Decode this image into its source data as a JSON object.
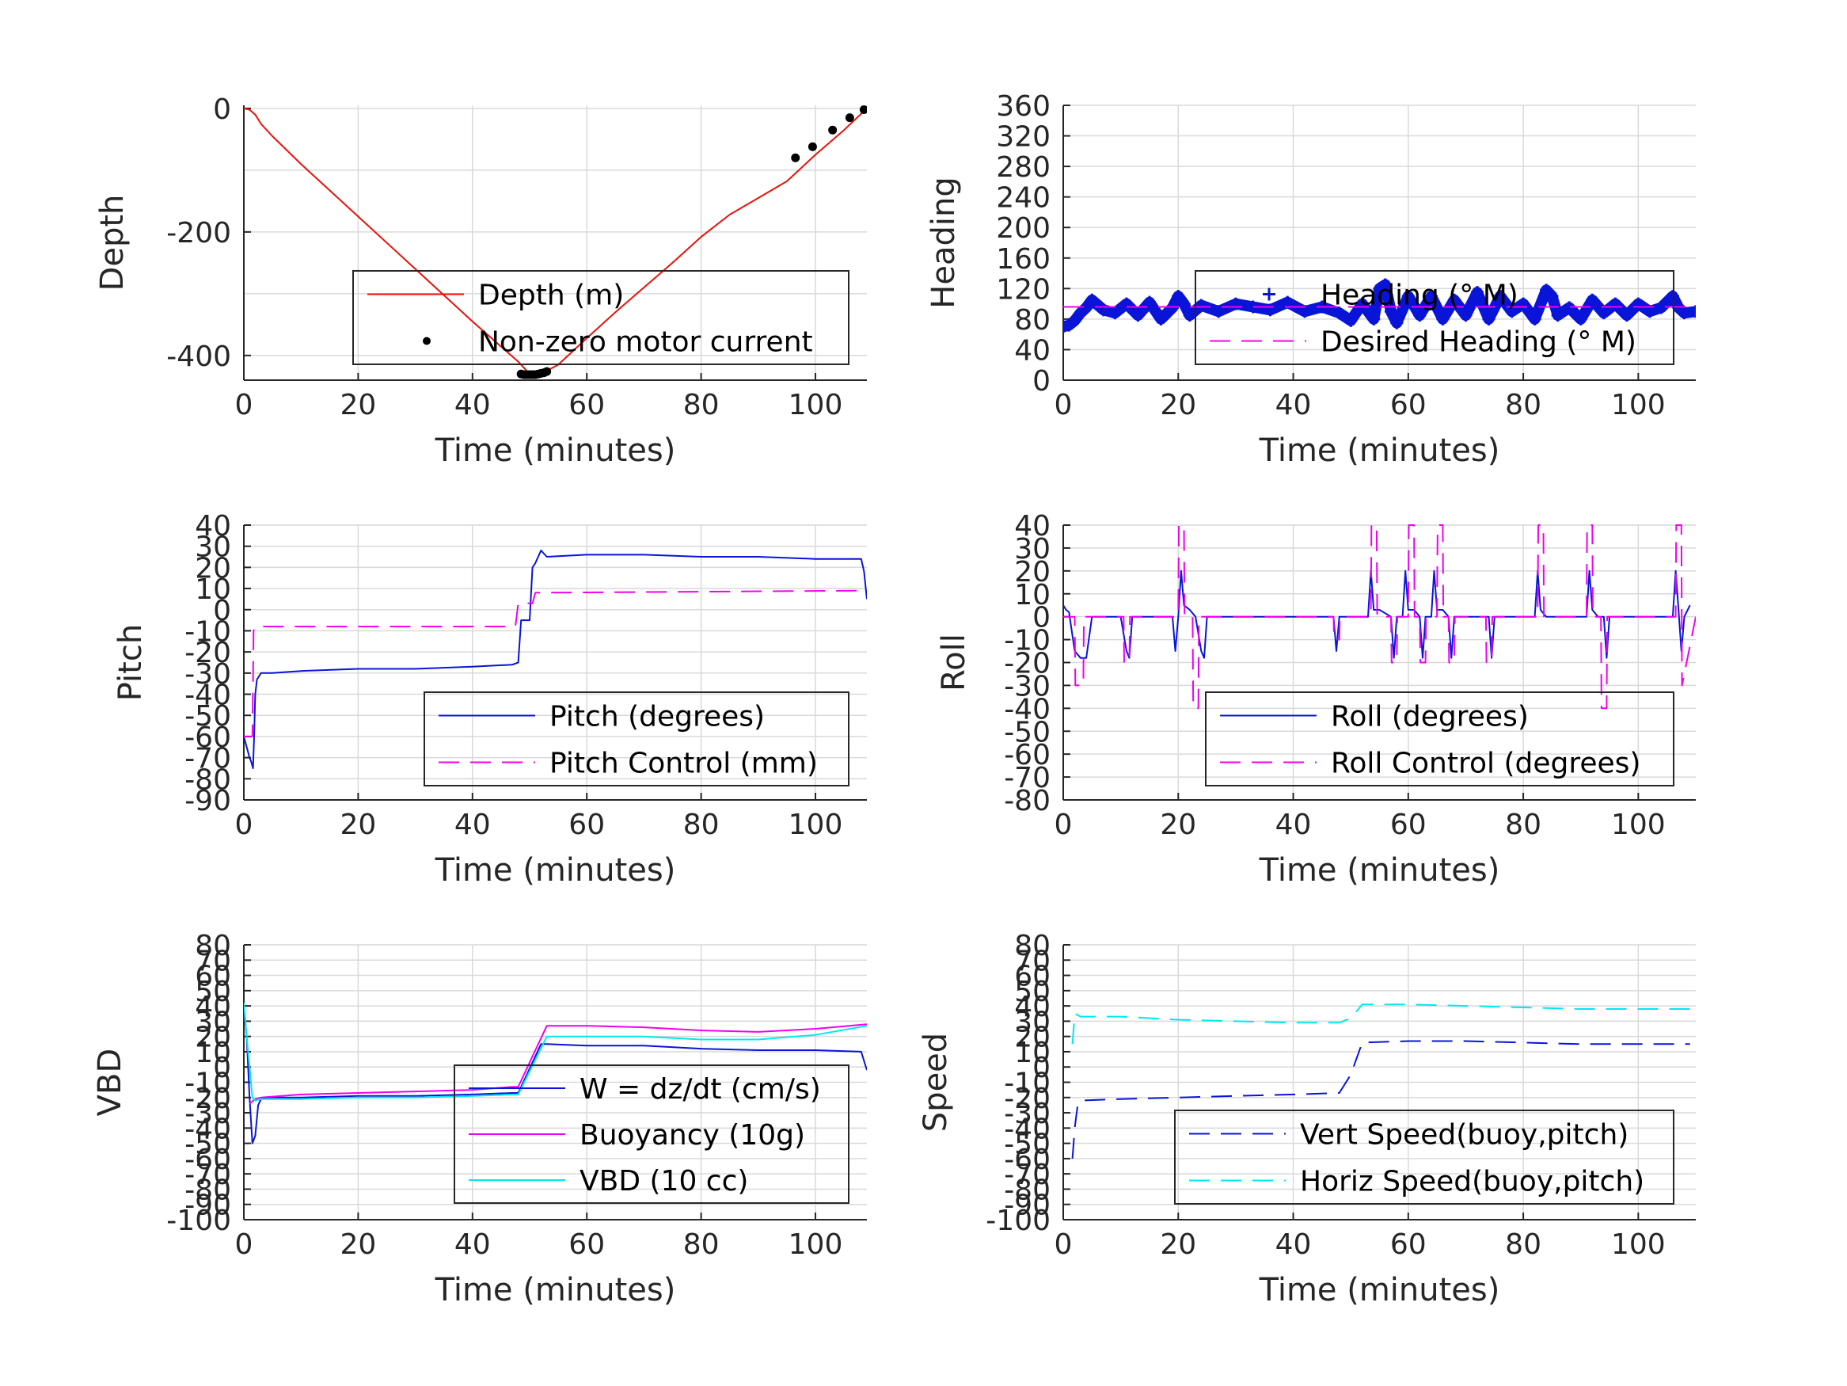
{
  "colors": {
    "red": "#e8120c",
    "blue": "#0a14d8",
    "magenta": "#f000f0",
    "cyan": "#00e8f0",
    "black": "#000000",
    "grid": "#d9d9d9",
    "axis": "#262626"
  },
  "chart_data": [
    {
      "id": "depth",
      "type": "line",
      "xlabel": "Time (minutes)",
      "ylabel": "Depth",
      "xlim": [
        0,
        109
      ],
      "ylim": [
        -440,
        5
      ],
      "xticks": [
        0,
        20,
        40,
        60,
        80,
        100
      ],
      "yticks": [
        0,
        -200,
        -400
      ],
      "ygrid": [
        0,
        -100,
        -200,
        -300,
        -400
      ],
      "legend_position": "bottom-right",
      "series": [
        {
          "name": "Depth (m)",
          "kind": "line",
          "color": "#e8120c",
          "dash": "",
          "x": [
            0,
            1,
            2,
            3,
            5,
            10,
            20,
            30,
            40,
            48,
            50,
            53,
            55,
            60,
            65,
            70,
            75,
            80,
            85,
            90,
            95,
            100,
            105,
            109
          ],
          "y": [
            0,
            -2,
            -10,
            -25,
            -45,
            -90,
            -175,
            -260,
            -345,
            -410,
            -430,
            -425,
            -415,
            -372,
            -330,
            -290,
            -250,
            -208,
            -172,
            -145,
            -118,
            -75,
            -35,
            0
          ]
        },
        {
          "name": "Non-zero motor current",
          "kind": "dots",
          "color": "#000000",
          "x": [
            48.5,
            49,
            49.5,
            50,
            50.5,
            51,
            51.5,
            52,
            52.5,
            53,
            96.5,
            99.5,
            103,
            106,
            108.5
          ],
          "y": [
            -430,
            -431,
            -431,
            -431,
            -431,
            -431,
            -430,
            -429,
            -428,
            -426,
            -80,
            -62,
            -35,
            -15,
            -2
          ]
        }
      ]
    },
    {
      "id": "heading",
      "type": "line",
      "xlabel": "Time (minutes)",
      "ylabel": "Heading",
      "xlim": [
        0,
        110
      ],
      "ylim": [
        0,
        360
      ],
      "xticks": [
        0,
        20,
        40,
        60,
        80,
        100
      ],
      "yticks": [
        0,
        40,
        80,
        120,
        160,
        200,
        240,
        280,
        320,
        360
      ],
      "ygrid": [
        0,
        40,
        80,
        120,
        160,
        200,
        240,
        280,
        320,
        360
      ],
      "legend_position": "right",
      "series": [
        {
          "name": "Heading (° M)",
          "kind": "marker-line",
          "color": "#0a14d8",
          "x": [
            0,
            1,
            2,
            3,
            4,
            5,
            7,
            9,
            11,
            13,
            15,
            17,
            19,
            20,
            21,
            22,
            24,
            27,
            30,
            33,
            36,
            39,
            42,
            45,
            48,
            50,
            52,
            54,
            55,
            56,
            57,
            58,
            60,
            62,
            64,
            66,
            68,
            70,
            72,
            74,
            76,
            78,
            80,
            82,
            84,
            85,
            86,
            88,
            90,
            92,
            94,
            96,
            98,
            100,
            102,
            104,
            106,
            107,
            108,
            110
          ],
          "y": [
            70,
            72,
            78,
            88,
            95,
            105,
            92,
            88,
            100,
            85,
            102,
            80,
            95,
            110,
            100,
            85,
            98,
            90,
            100,
            96,
            92,
            102,
            90,
            96,
            88,
            78,
            100,
            80,
            120,
            125,
            90,
            75,
            110,
            85,
            110,
            80,
            105,
            85,
            115,
            80,
            110,
            90,
            100,
            80,
            118,
            110,
            85,
            95,
            80,
            105,
            88,
            100,
            85,
            100,
            90,
            95,
            110,
            95,
            88,
            90
          ]
        },
        {
          "name": "Desired Heading (° M)",
          "kind": "line",
          "color": "#f000f0",
          "dash": "26,14",
          "x": [
            0,
            110
          ],
          "y": [
            96,
            96
          ]
        }
      ]
    },
    {
      "id": "pitch",
      "type": "line",
      "xlabel": "Time (minutes)",
      "ylabel": "Pitch",
      "xlim": [
        0,
        109
      ],
      "ylim": [
        -90,
        40
      ],
      "xticks": [
        0,
        20,
        40,
        60,
        80,
        100
      ],
      "yticks": [
        40,
        30,
        20,
        10,
        0,
        -10,
        -20,
        -30,
        -40,
        -50,
        -60,
        -70,
        -80,
        -90
      ],
      "ygrid": [
        40,
        30,
        20,
        10,
        0,
        -10,
        -20,
        -30,
        -40,
        -50,
        -60,
        -70,
        -80,
        -90
      ],
      "legend_position": "bottom-right",
      "series": [
        {
          "name": "Pitch (degrees)",
          "kind": "line",
          "color": "#0a14d8",
          "dash": "",
          "x": [
            0,
            0.5,
            1,
            1.3,
            1.6,
            1.8,
            2,
            2.3,
            3,
            5,
            10,
            20,
            30,
            40,
            47,
            48,
            48.5,
            50,
            50.5,
            51,
            52,
            53,
            60,
            70,
            80,
            90,
            100,
            108,
            108.5,
            109
          ],
          "y": [
            -60,
            -65,
            -70,
            -72,
            -75,
            -60,
            -40,
            -33,
            -30,
            -30,
            -29,
            -28,
            -28,
            -27,
            -26,
            -25,
            -5,
            -5,
            20,
            22,
            28,
            25,
            26,
            26,
            25,
            25,
            24,
            24,
            18,
            5
          ]
        },
        {
          "name": "Pitch Control (mm)",
          "kind": "line",
          "color": "#f000f0",
          "dash": "26,14",
          "x": [
            0,
            1.5,
            1.7,
            2,
            47.5,
            48,
            50.5,
            51,
            109
          ],
          "y": [
            -60,
            -60,
            -10,
            -8,
            -8,
            3,
            3,
            8,
            9
          ]
        }
      ]
    },
    {
      "id": "roll",
      "type": "line",
      "xlabel": "Time (minutes)",
      "ylabel": "Roll",
      "xlim": [
        0,
        110
      ],
      "ylim": [
        -80,
        40
      ],
      "xticks": [
        0,
        20,
        40,
        60,
        80,
        100
      ],
      "yticks": [
        40,
        30,
        20,
        10,
        0,
        -10,
        -20,
        -30,
        -40,
        -50,
        -60,
        -70,
        -80
      ],
      "ygrid": [
        40,
        30,
        20,
        10,
        0,
        -10,
        -20,
        -30,
        -40,
        -50,
        -60,
        -70,
        -80
      ],
      "legend_position": "bottom-right",
      "series": [
        {
          "name": "Roll (degrees)",
          "kind": "line",
          "color": "#0a14d8",
          "dash": "",
          "x": [
            0,
            0.5,
            1,
            2,
            3,
            4,
            5,
            10,
            11,
            11.5,
            12,
            19,
            19.5,
            20,
            20.5,
            21,
            22,
            23,
            24,
            24.5,
            25,
            47,
            47.5,
            48,
            53,
            53.5,
            54,
            55,
            57,
            57.5,
            58,
            59,
            59.5,
            60,
            61,
            62,
            62.5,
            63,
            64,
            64.5,
            65,
            66,
            67,
            67.5,
            68,
            74,
            74.5,
            75,
            76,
            82,
            82.5,
            83,
            84,
            91,
            91.5,
            92,
            93,
            94,
            94.5,
            95,
            106,
            106.5,
            107,
            107.5,
            108,
            109
          ],
          "y": [
            5,
            3,
            2,
            -15,
            -18,
            -18,
            0,
            0,
            -15,
            -18,
            0,
            0,
            -15,
            0,
            20,
            5,
            3,
            0,
            -15,
            -18,
            0,
            0,
            -15,
            0,
            0,
            20,
            3,
            3,
            0,
            -18,
            0,
            0,
            20,
            3,
            3,
            0,
            -18,
            0,
            0,
            20,
            3,
            3,
            0,
            -18,
            0,
            0,
            -18,
            0,
            0,
            0,
            20,
            3,
            0,
            0,
            20,
            3,
            0,
            0,
            -18,
            0,
            0,
            20,
            3,
            -15,
            0,
            5
          ]
        },
        {
          "name": "Roll Control (degrees)",
          "kind": "line",
          "color": "#f000f0",
          "dash": "26,14",
          "x": [
            0,
            2,
            2.1,
            3.5,
            3.6,
            10.5,
            10.6,
            11.5,
            11.6,
            20,
            20.1,
            21,
            21.1,
            22.5,
            22.6,
            23.5,
            23.6,
            47,
            47.1,
            48,
            48.1,
            53.5,
            53.6,
            54.5,
            54.6,
            57,
            57.1,
            58,
            58.1,
            60,
            60.1,
            61,
            61.1,
            62,
            62.1,
            63,
            63.1,
            65,
            65.1,
            66,
            66.1,
            67,
            67.1,
            68,
            68.1,
            73.5,
            73.6,
            74.5,
            74.6,
            82.5,
            82.6,
            83.5,
            83.6,
            91,
            91.1,
            92,
            92.1,
            93.5,
            93.6,
            94.5,
            94.6,
            106.5,
            106.6,
            107.5,
            107.6,
            110
          ],
          "y": [
            0,
            0,
            -30,
            -30,
            0,
            0,
            -20,
            -20,
            0,
            0,
            40,
            40,
            0,
            0,
            -40,
            -40,
            0,
            0,
            -10,
            -10,
            0,
            0,
            40,
            40,
            0,
            0,
            -20,
            -20,
            0,
            0,
            40,
            40,
            0,
            0,
            -20,
            -20,
            0,
            0,
            40,
            40,
            0,
            0,
            -20,
            -20,
            0,
            0,
            -20,
            -20,
            0,
            0,
            40,
            40,
            0,
            0,
            40,
            40,
            0,
            0,
            -40,
            -40,
            0,
            0,
            40,
            40,
            -30,
            0
          ]
        }
      ]
    },
    {
      "id": "vbd",
      "type": "line",
      "xlabel": "Time (minutes)",
      "ylabel": "VBD",
      "xlim": [
        0,
        109
      ],
      "ylim": [
        -100,
        80
      ],
      "xticks": [
        0,
        20,
        40,
        60,
        80,
        100
      ],
      "yticks": [
        80,
        70,
        60,
        50,
        40,
        30,
        20,
        10,
        0,
        -10,
        -20,
        -30,
        -40,
        -50,
        -60,
        -70,
        -80,
        -90,
        -100
      ],
      "ygrid": [
        80,
        70,
        60,
        50,
        40,
        30,
        20,
        10,
        0,
        -10,
        -20,
        -30,
        -40,
        -50,
        -60,
        -70,
        -80,
        -90,
        -100
      ],
      "legend_position": "bottom-right",
      "series": [
        {
          "name": "W = dz/dt (cm/s)",
          "kind": "line",
          "color": "#0a14d8",
          "dash": "",
          "x": [
            0,
            0.5,
            1,
            1.5,
            2,
            2.5,
            3,
            4,
            10,
            20,
            30,
            40,
            47,
            48,
            52,
            53,
            60,
            70,
            80,
            90,
            100,
            108,
            109
          ],
          "y": [
            40,
            20,
            -20,
            -50,
            -45,
            -25,
            -21,
            -20,
            -20,
            -19,
            -19,
            -18,
            -17,
            -17,
            15,
            15,
            14,
            14,
            12,
            11,
            11,
            10,
            -2
          ]
        },
        {
          "name": "Buoyancy (10g)",
          "kind": "line",
          "color": "#f000f0",
          "dash": "",
          "x": [
            1,
            2,
            3,
            10,
            20,
            30,
            40,
            47,
            48,
            53,
            60,
            70,
            80,
            90,
            100,
            109
          ],
          "y": [
            -24,
            -21,
            -20,
            -18,
            -17,
            -16,
            -15,
            -13,
            -13,
            27,
            27,
            26,
            24,
            23,
            25,
            28
          ]
        },
        {
          "name": "VBD (10 cc)",
          "kind": "line",
          "color": "#00e8f0",
          "dash": "",
          "x": [
            0,
            0.5,
            1.5,
            2,
            3,
            10,
            20,
            30,
            40,
            47,
            48,
            53,
            60,
            70,
            80,
            90,
            100,
            109
          ],
          "y": [
            42,
            20,
            -20,
            -22,
            -21,
            -21,
            -20,
            -20,
            -19,
            -18,
            -18,
            20,
            20,
            20,
            18,
            18,
            21,
            27
          ]
        }
      ]
    },
    {
      "id": "speed",
      "type": "line",
      "xlabel": "Time (minutes)",
      "ylabel": "Speed",
      "xlim": [
        0,
        110
      ],
      "ylim": [
        -100,
        80
      ],
      "xticks": [
        0,
        20,
        40,
        60,
        80,
        100
      ],
      "yticks": [
        80,
        70,
        60,
        50,
        40,
        30,
        20,
        10,
        0,
        -10,
        -20,
        -30,
        -40,
        -50,
        -60,
        -70,
        -80,
        -90,
        -100
      ],
      "ygrid": [
        80,
        70,
        60,
        50,
        40,
        30,
        20,
        10,
        0,
        -10,
        -20,
        -30,
        -40,
        -50,
        -60,
        -70,
        -80,
        -90,
        -100
      ],
      "legend_position": "bottom-right",
      "series": [
        {
          "name": "Vert Speed(buoy,pitch)",
          "kind": "line",
          "color": "#0a14d8",
          "dash": "26,14",
          "x": [
            1.6,
            1.8,
            2,
            2.5,
            3,
            10,
            20,
            30,
            40,
            48,
            50,
            52,
            60,
            70,
            80,
            90,
            100,
            109
          ],
          "y": [
            -60,
            -50,
            -40,
            -25,
            -22,
            -21,
            -20,
            -19,
            -18,
            -17,
            -5,
            16,
            17,
            17,
            16,
            15,
            15,
            15
          ]
        },
        {
          "name": "Horiz Speed(buoy,pitch)",
          "kind": "line",
          "color": "#00e8f0",
          "dash": "26,14",
          "x": [
            1.6,
            1.8,
            2,
            2.5,
            3,
            10,
            20,
            30,
            40,
            48,
            50,
            52,
            60,
            70,
            80,
            90,
            100,
            109
          ],
          "y": [
            15,
            25,
            35,
            34,
            33,
            33,
            31,
            30,
            29,
            29,
            32,
            41,
            41,
            40,
            39,
            38,
            38,
            38
          ]
        }
      ]
    }
  ]
}
